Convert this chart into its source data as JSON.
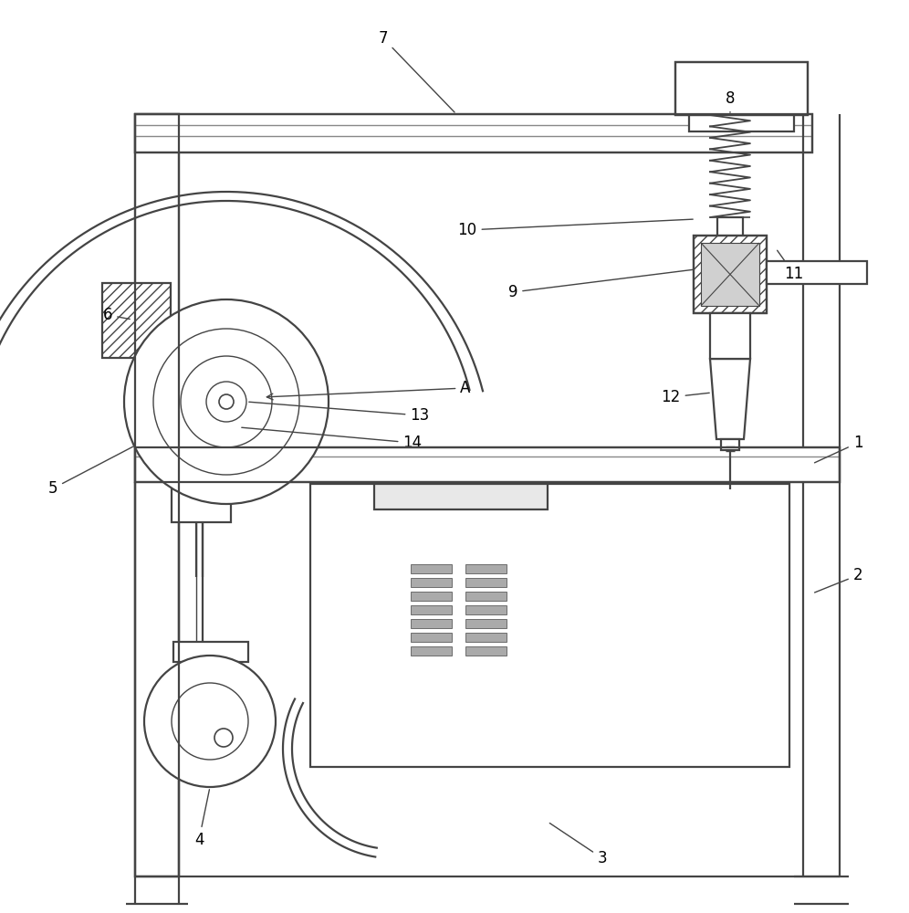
{
  "lc": "#444444",
  "lw": 1.6,
  "fs": 12,
  "bg": "white"
}
